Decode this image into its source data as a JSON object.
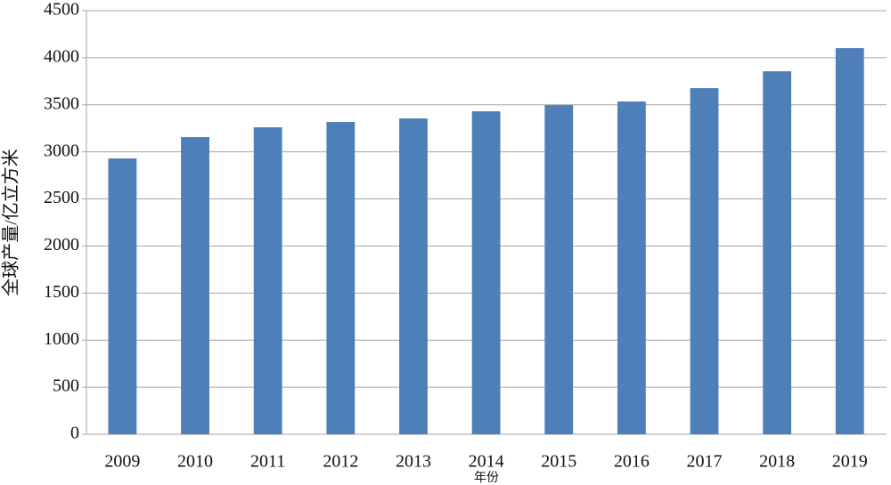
{
  "chart_data": {
    "type": "bar",
    "y_label": "全球产量/亿立方米",
    "x_label": "年份",
    "categories": [
      "2009",
      "2010",
      "2011",
      "2012",
      "2013",
      "2014",
      "2015",
      "2016",
      "2017",
      "2018",
      "2019"
    ],
    "values": [
      2930,
      3157,
      3261,
      3318,
      3355,
      3431,
      3497,
      3535,
      3677,
      3856,
      4102
    ],
    "color": "#4f7fb8",
    "ylim": [
      0,
      4500
    ],
    "yticks": [
      0,
      500,
      1000,
      1500,
      2000,
      2500,
      3000,
      3500,
      4000,
      4500
    ],
    "grid": true
  }
}
